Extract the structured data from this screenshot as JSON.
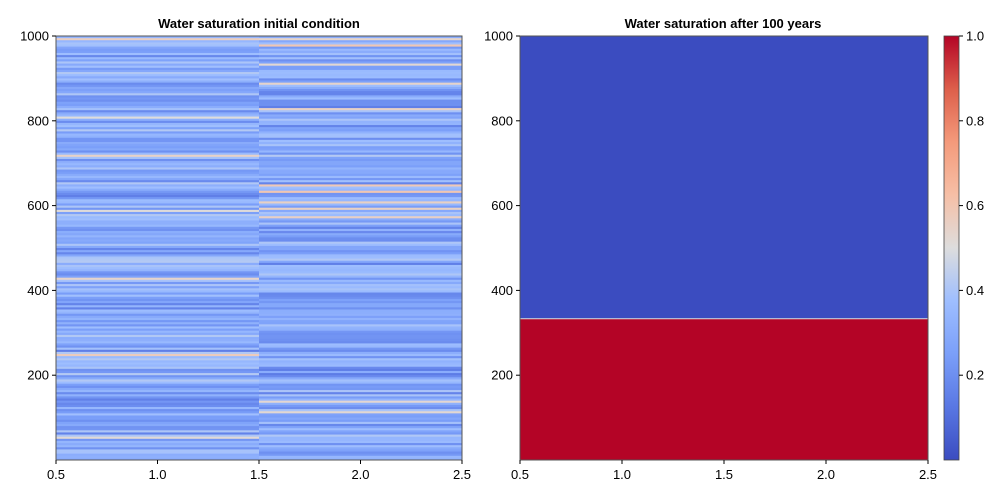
{
  "chart_data": [
    {
      "type": "heatmap",
      "title": "Water saturation initial condition",
      "xlim": [
        0.5,
        2.5
      ],
      "ylim": [
        0,
        1000
      ],
      "x_ticks": [
        "0.5",
        "1.0",
        "1.5",
        "2.0",
        "2.5"
      ],
      "y_ticks": [
        "200",
        "400",
        "600",
        "800",
        "1000"
      ],
      "x_ticks_values": [
        0.5,
        1.0,
        1.5,
        2.0,
        2.5
      ],
      "y_ticks_values": [
        200,
        400,
        600,
        800,
        1000
      ],
      "columns": 2,
      "column_x_edges": [
        0.5,
        1.5,
        2.5
      ],
      "value_range_note": "layered random saturation values mostly between 0.2 and 0.45 with thin bands up to about 0.6",
      "value_min": 0.15,
      "value_max": 0.6,
      "grid": false
    },
    {
      "type": "heatmap",
      "title": "Water saturation after 100 years",
      "xlim": [
        0.5,
        2.5
      ],
      "ylim": [
        0,
        1000
      ],
      "x_ticks": [
        "0.5",
        "1.0",
        "1.5",
        "2.0",
        "2.5"
      ],
      "y_ticks": [
        "200",
        "400",
        "600",
        "800",
        "1000"
      ],
      "x_ticks_values": [
        0.5,
        1.0,
        1.5,
        2.0,
        2.5
      ],
      "y_ticks_values": [
        200,
        400,
        600,
        800,
        1000
      ],
      "regions": [
        {
          "y_from": 0,
          "y_to": 333,
          "value": 1.0
        },
        {
          "y_from": 333,
          "y_to": 1000,
          "value": 0.0
        }
      ],
      "interface_y": 333,
      "grid": false
    }
  ],
  "colorbar": {
    "colormap": "coolwarm",
    "range": [
      0.0,
      1.0
    ],
    "ticks": [
      "0.2",
      "0.4",
      "0.6",
      "0.8",
      "1.0"
    ],
    "tick_values": [
      0.2,
      0.4,
      0.6,
      0.8,
      1.0
    ],
    "colors": {
      "low": "#3b4cc0",
      "mid": "#dddddd",
      "high": "#b40426"
    }
  }
}
